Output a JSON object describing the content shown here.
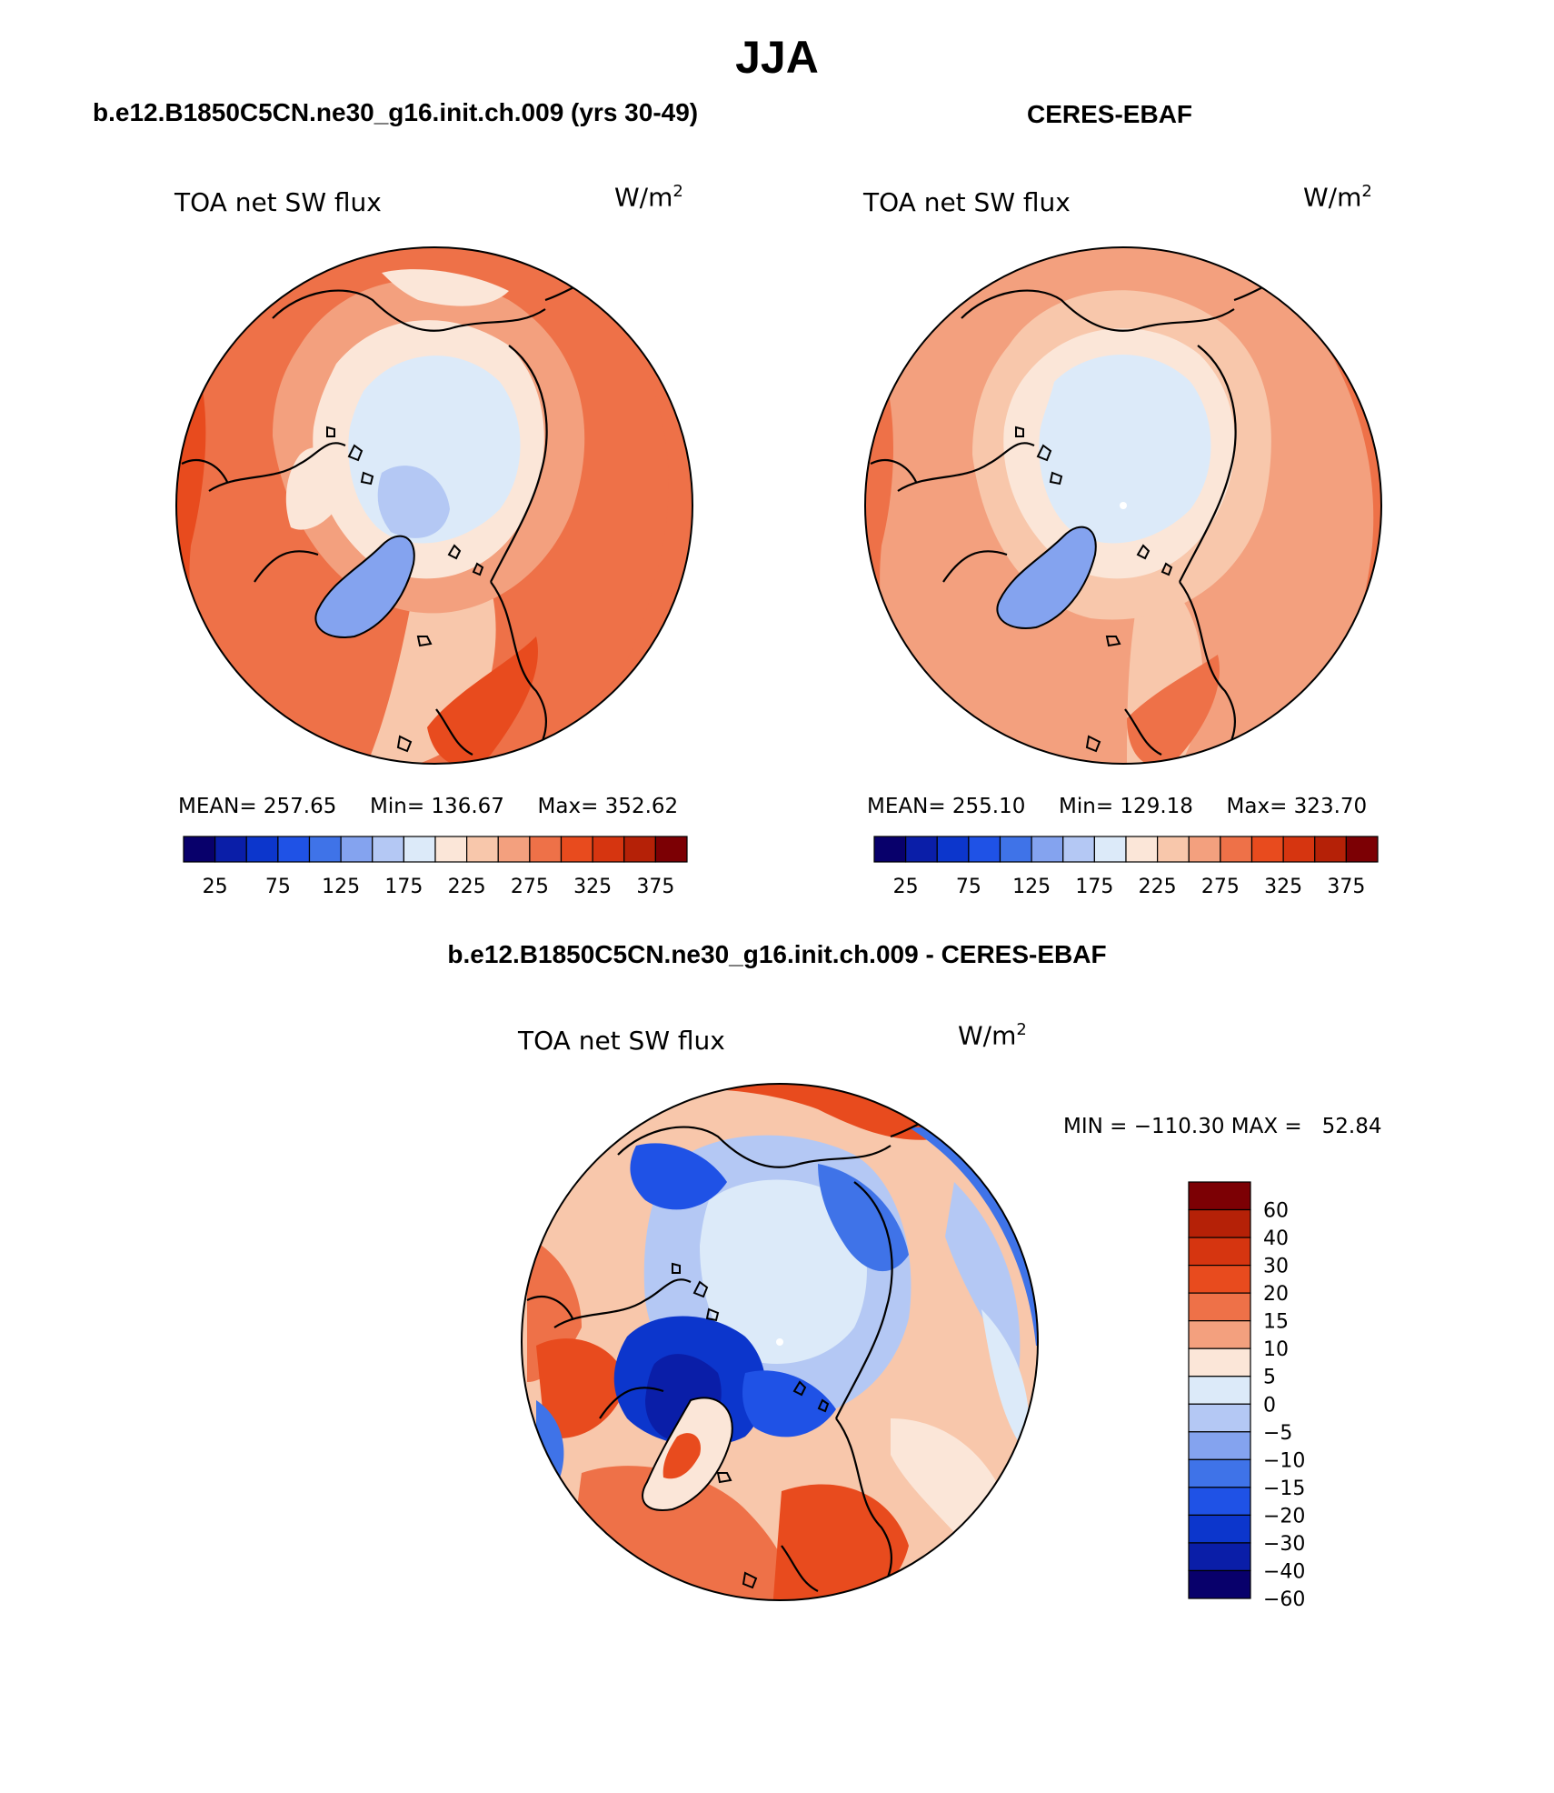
{
  "figure": {
    "season": "JJA",
    "panel_a_header": "b.e12.B1850C5CN.ne30_g16.init.ch.009 (yrs 30-49)",
    "panel_b_header": "CERES-EBAF",
    "panel_c_header": "b.e12.B1850C5CN.ne30_g16.init.ch.009 - CERES-EBAF"
  },
  "panels": [
    {
      "variable": "TOA net SW flux",
      "units_base": "W/m",
      "units_exp": "2",
      "mean_label": "MEAN=",
      "mean": "257.65",
      "min_label": "Min=",
      "min": "136.67",
      "max_label": "Max=",
      "max": "352.62"
    },
    {
      "variable": "TOA net SW flux",
      "units_base": "W/m",
      "units_exp": "2",
      "mean_label": "MEAN=",
      "mean": "255.10",
      "min_label": "Min=",
      "min": "129.18",
      "max_label": "Max=",
      "max": "323.70"
    },
    {
      "variable": "TOA net SW flux",
      "units_base": "W/m",
      "units_exp": "2",
      "minmax_text": "MIN = −110.30 MAX =   52.84"
    }
  ],
  "abs_colorbar": {
    "colors": [
      "#08006b",
      "#0a1ea8",
      "#0c36cc",
      "#1f52e6",
      "#3f73e8",
      "#84a3ef",
      "#b4c8f4",
      "#dceaf9",
      "#fbe6d8",
      "#f8c7ab",
      "#f3a07e",
      "#ee7148",
      "#e84b1e",
      "#d63510",
      "#b52107",
      "#7c0004"
    ],
    "tick_labels": [
      "25",
      "75",
      "125",
      "175",
      "225",
      "275",
      "325",
      "375"
    ]
  },
  "diff_colorbar": {
    "colors": [
      "#7c0004",
      "#b52107",
      "#d63510",
      "#e84b1e",
      "#ee7148",
      "#f3a07e",
      "#fbe6d8",
      "#dceaf9",
      "#b4c8f4",
      "#84a3ef",
      "#3f73e8",
      "#1f52e6",
      "#0c36cc",
      "#0a1ea8",
      "#08006b"
    ],
    "tick_labels": [
      "60",
      "40",
      "30",
      "20",
      "15",
      "10",
      "5",
      "0",
      "−5",
      "−10",
      "−15",
      "−20",
      "−30",
      "−40",
      "−60"
    ]
  }
}
